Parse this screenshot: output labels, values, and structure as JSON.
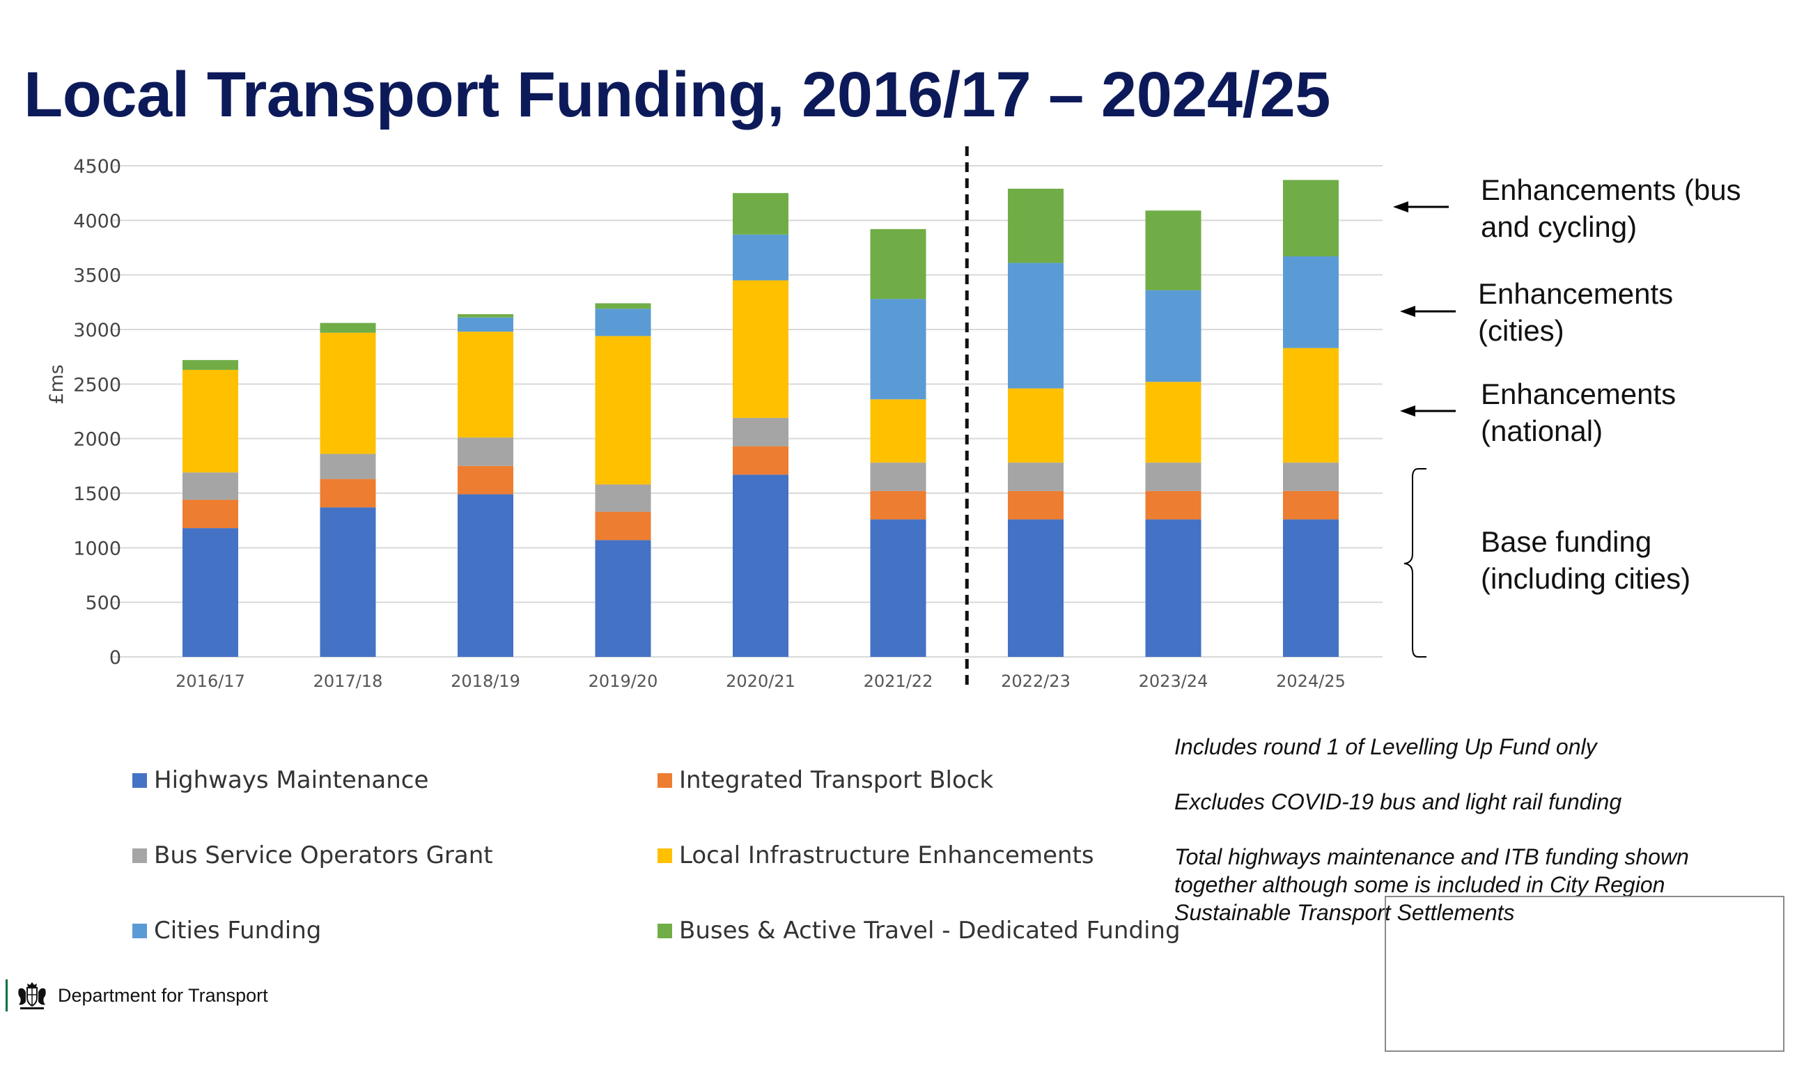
{
  "title": "Local Transport Funding, 2016/17 – 2024/25",
  "chart_data": {
    "type": "bar",
    "stacked": true,
    "ylabel": "£ms",
    "ylim": [
      0,
      4500
    ],
    "yticks": [
      0,
      500,
      1000,
      1500,
      2000,
      2500,
      3000,
      3500,
      4000,
      4500
    ],
    "grid": true,
    "categories": [
      "2016/17",
      "2017/18",
      "2018/19",
      "2019/20",
      "2020/21",
      "2021/22",
      "2022/23",
      "2023/24",
      "2024/25"
    ],
    "divider_after_category": "2021/22",
    "series": [
      {
        "name": "Highways Maintenance",
        "color": "#4472c4",
        "values": [
          1180,
          1370,
          1490,
          1070,
          1670,
          1260,
          1260,
          1260,
          1260
        ]
      },
      {
        "name": "Integrated Transport Block",
        "color": "#ed7d31",
        "values": [
          260,
          260,
          260,
          260,
          260,
          260,
          260,
          260,
          260
        ]
      },
      {
        "name": "Bus Service Operators Grant",
        "color": "#a5a5a5",
        "values": [
          250,
          230,
          260,
          250,
          260,
          260,
          260,
          260,
          260
        ]
      },
      {
        "name": "Local Infrastructure Enhancements",
        "color": "#ffc000",
        "values": [
          940,
          1110,
          970,
          1360,
          1260,
          580,
          680,
          740,
          1050
        ]
      },
      {
        "name": "Cities Funding",
        "color": "#5b9bd5",
        "values": [
          0,
          0,
          130,
          250,
          420,
          920,
          1150,
          840,
          840
        ]
      },
      {
        "name": "Buses & Active Travel - Dedicated Funding",
        "color": "#70ad47",
        "values": [
          90,
          90,
          30,
          50,
          380,
          640,
          680,
          730,
          700
        ]
      }
    ],
    "legend_position": "bottom"
  },
  "annotations": {
    "bus_cycling": "Enhancements (bus and cycling)",
    "cities": "Enhancements (cities)",
    "national": "Enhancements (national)",
    "base": "Base funding (including cities)"
  },
  "notes": [
    "Includes round 1 of Levelling Up Fund only",
    "Excludes COVID-19 bus and light rail funding",
    "Total highways maintenance and ITB funding shown together although some is included in City Region Sustainable Transport Settlements"
  ],
  "footer": {
    "organisation": "Department for Transport",
    "logo_icon": "royal-crest-icon"
  }
}
